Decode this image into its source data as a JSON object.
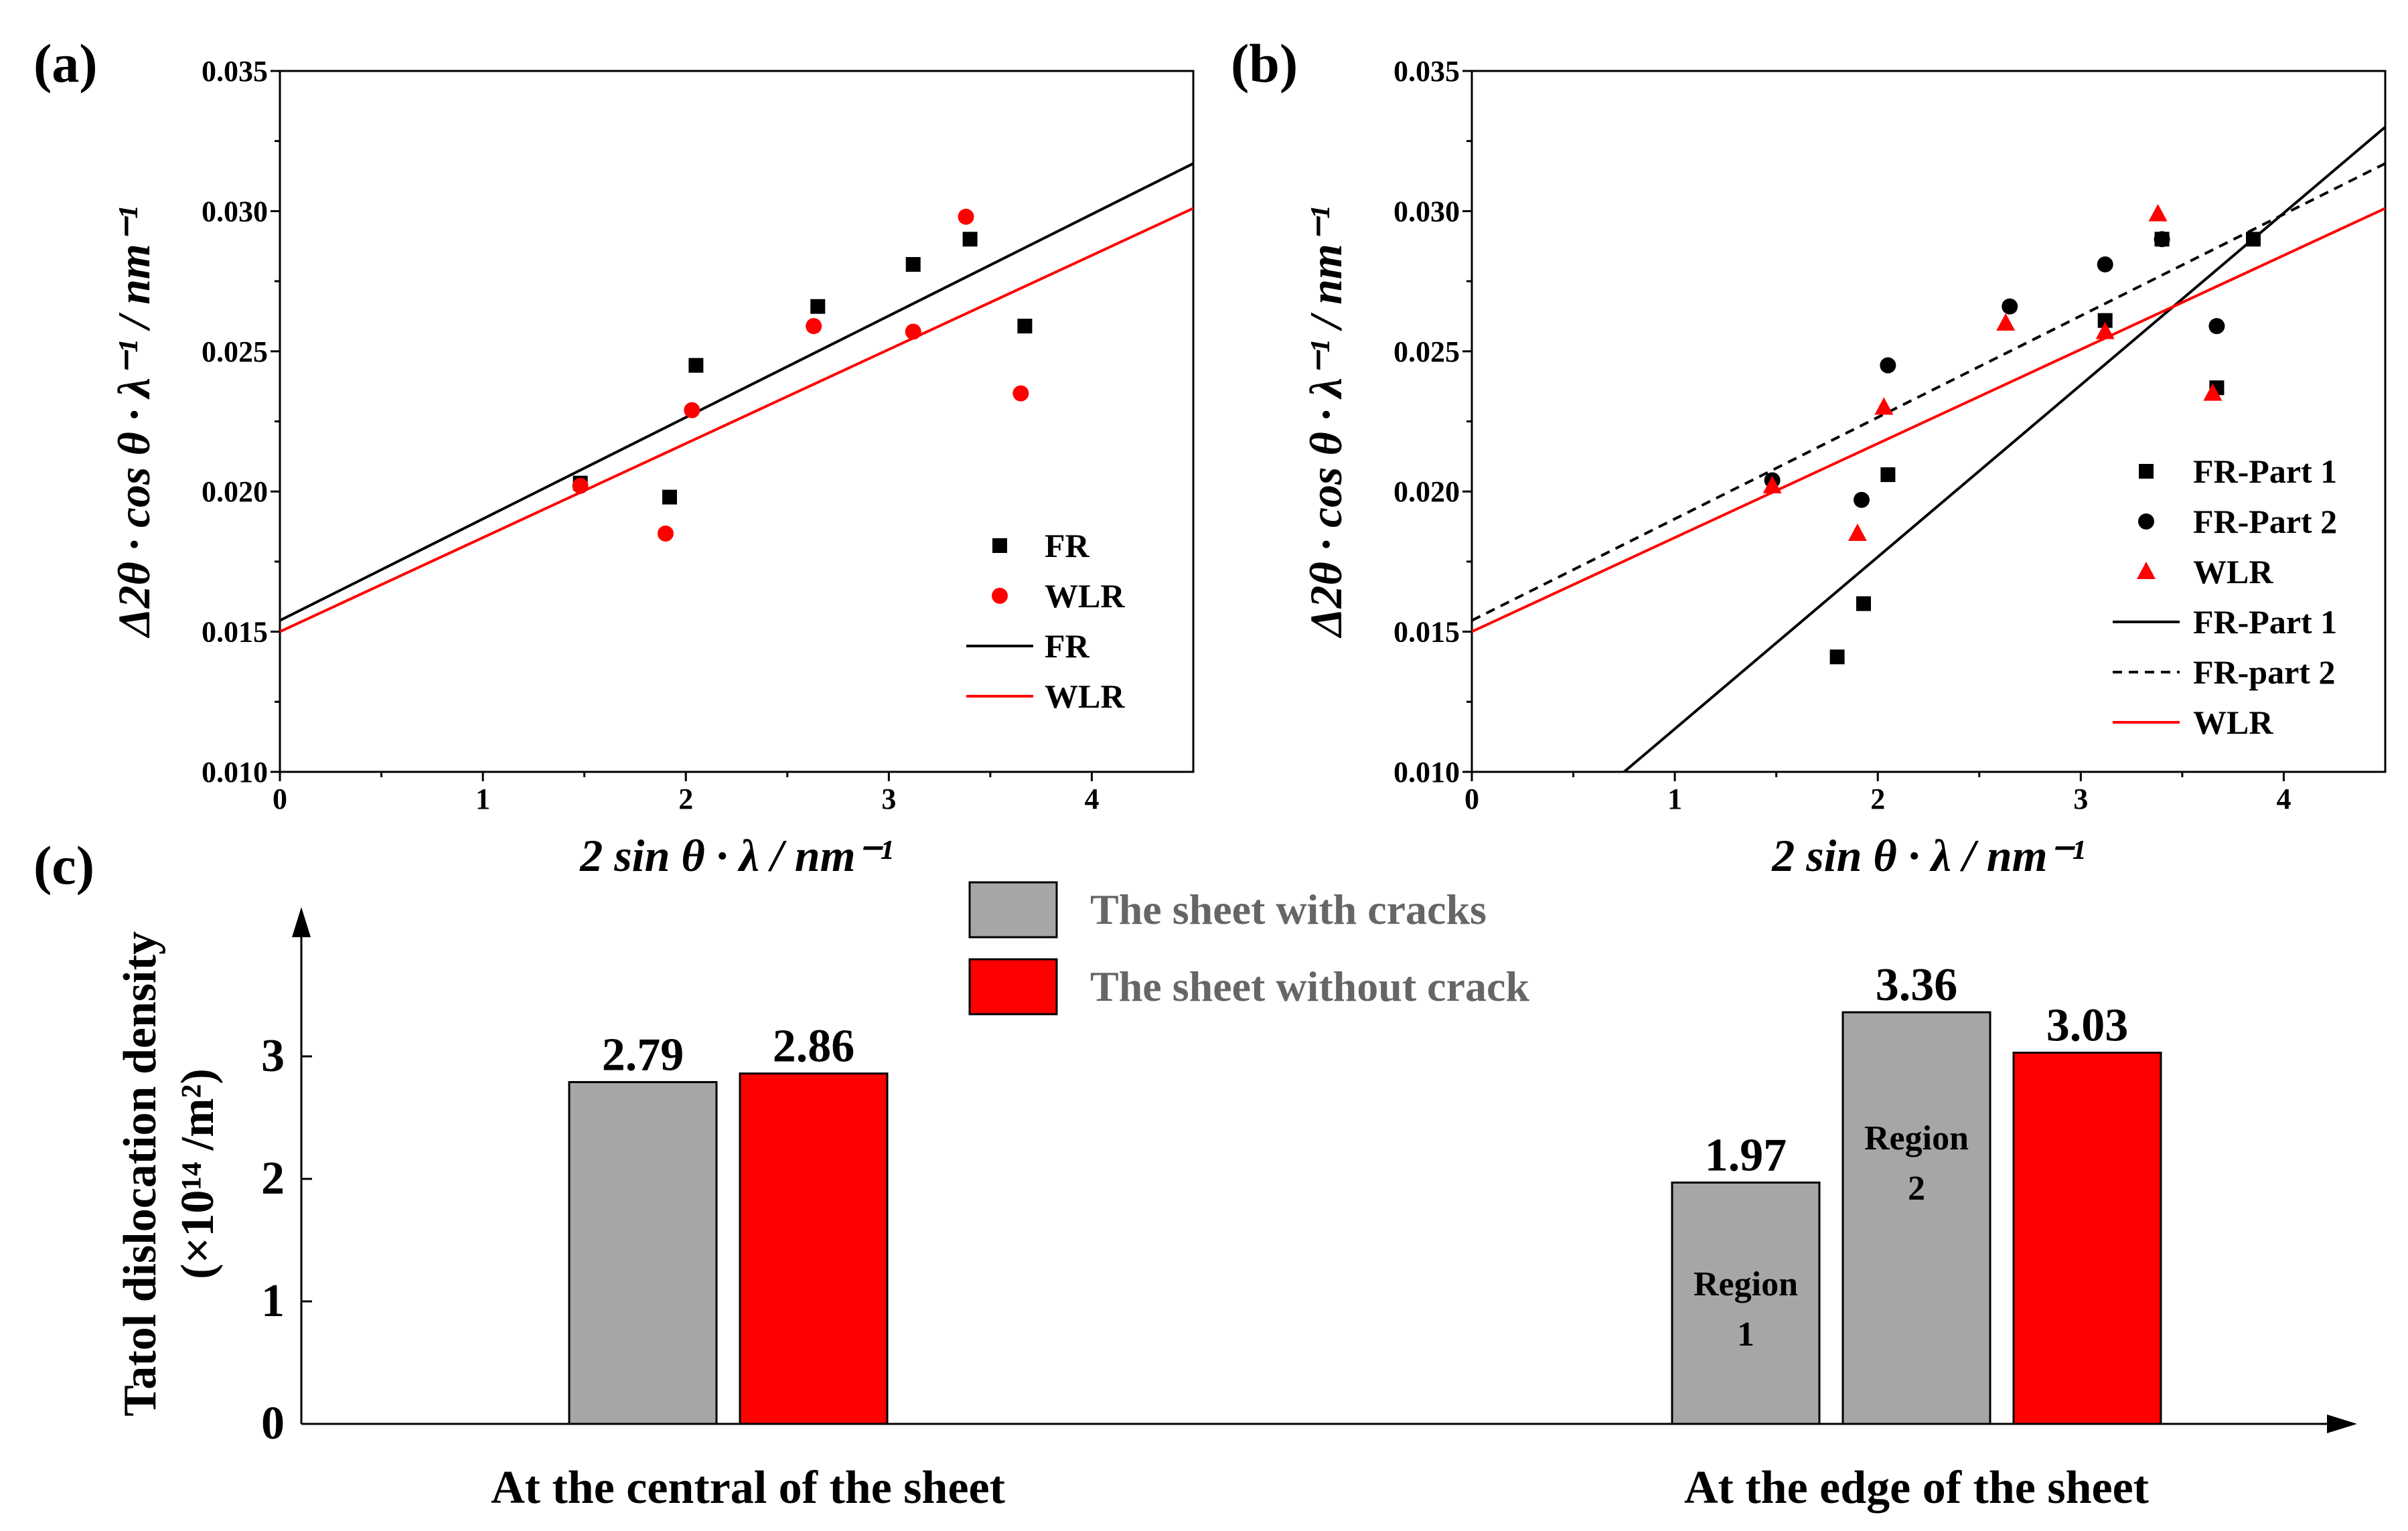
{
  "panels": {
    "a": {
      "label": "(a)"
    },
    "b": {
      "label": "(b)"
    },
    "c": {
      "label": "(c)"
    }
  },
  "chart_data": [
    {
      "id": "a",
      "type": "scatter",
      "xlabel": "2 sin θ · λ / nm⁻¹",
      "ylabel": "Δ2θ · cos θ · λ⁻¹ / nm⁻¹",
      "xlim": [
        0,
        4.5
      ],
      "ylim": [
        0.01,
        0.035
      ],
      "xticks": [
        0,
        1,
        2,
        3,
        4
      ],
      "yticks": [
        0.01,
        0.015,
        0.02,
        0.025,
        0.03,
        0.035
      ],
      "xtick_labels": [
        "0",
        "1",
        "2",
        "3",
        "4"
      ],
      "ytick_labels": [
        "0.010",
        "0.015",
        "0.020",
        "0.025",
        "0.030",
        "0.035"
      ],
      "legend": [
        "FR",
        "WLR",
        "FR",
        "WLR"
      ],
      "series": [
        {
          "name": "FR",
          "marker": "square",
          "color": "#000000",
          "x": [
            1.48,
            1.92,
            2.05,
            2.65,
            3.12,
            3.4,
            3.67
          ],
          "y": [
            0.0203,
            0.0198,
            0.0245,
            0.0266,
            0.0281,
            0.029,
            0.0259
          ]
        },
        {
          "name": "WLR",
          "marker": "circle",
          "color": "#ff0000",
          "x": [
            1.48,
            1.9,
            2.03,
            2.63,
            3.12,
            3.38,
            3.65
          ],
          "y": [
            0.0202,
            0.0185,
            0.0229,
            0.0259,
            0.0257,
            0.0298,
            0.0235
          ]
        }
      ],
      "lines": [
        {
          "name": "FR",
          "color": "#000000",
          "dash": "solid",
          "x": [
            0,
            4.5
          ],
          "y": [
            0.0154,
            0.0317
          ]
        },
        {
          "name": "WLR",
          "color": "#ff0000",
          "dash": "solid",
          "x": [
            0,
            4.5
          ],
          "y": [
            0.015,
            0.0301
          ]
        }
      ]
    },
    {
      "id": "b",
      "type": "scatter",
      "xlabel": "2 sin θ · λ / nm⁻¹",
      "ylabel": "Δ2θ · cos θ · λ⁻¹ / nm⁻¹",
      "xlim": [
        0,
        4.5
      ],
      "ylim": [
        0.01,
        0.035
      ],
      "xticks": [
        0,
        1,
        2,
        3,
        4
      ],
      "yticks": [
        0.01,
        0.015,
        0.02,
        0.025,
        0.03,
        0.035
      ],
      "xtick_labels": [
        "0",
        "1",
        "2",
        "3",
        "4"
      ],
      "ytick_labels": [
        "0.010",
        "0.015",
        "0.020",
        "0.025",
        "0.030",
        "0.035"
      ],
      "legend": [
        "FR-Part 1",
        "FR-Part 2",
        "WLR",
        "FR-Part 1",
        "FR-part 2",
        "WLR"
      ],
      "series": [
        {
          "name": "FR-Part 1",
          "marker": "square",
          "color": "#000000",
          "x": [
            1.8,
            1.93,
            2.05,
            3.12,
            3.4,
            3.67,
            3.85
          ],
          "y": [
            0.0141,
            0.016,
            0.0206,
            0.0261,
            0.029,
            0.0237,
            0.029
          ]
        },
        {
          "name": "FR-Part 2",
          "marker": "circle",
          "color": "#000000",
          "x": [
            1.48,
            1.92,
            2.05,
            2.65,
            3.12,
            3.4,
            3.67
          ],
          "y": [
            0.0204,
            0.0197,
            0.0245,
            0.0266,
            0.0281,
            0.029,
            0.0259
          ]
        },
        {
          "name": "WLR",
          "marker": "triangle",
          "color": "#ff0000",
          "x": [
            1.48,
            1.9,
            2.03,
            2.63,
            3.12,
            3.38,
            3.65
          ],
          "y": [
            0.0202,
            0.0185,
            0.023,
            0.026,
            0.0257,
            0.0299,
            0.0235
          ]
        }
      ],
      "lines": [
        {
          "name": "FR-Part 1",
          "color": "#000000",
          "dash": "solid",
          "x": [
            0.75,
            4.5
          ],
          "y": [
            0.01,
            0.033
          ]
        },
        {
          "name": "FR-part 2",
          "color": "#000000",
          "dash": "dashed",
          "x": [
            0,
            4.5
          ],
          "y": [
            0.0154,
            0.0317
          ]
        },
        {
          "name": "WLR",
          "color": "#ff0000",
          "dash": "solid",
          "x": [
            0,
            4.5
          ],
          "y": [
            0.015,
            0.0301
          ]
        }
      ]
    },
    {
      "id": "c",
      "type": "bar",
      "ylabel_line1": "Tatol dislocation density",
      "ylabel_line2": "(×10¹⁴ /m²)",
      "ylim": [
        0,
        3.9
      ],
      "yticks": [
        0,
        1,
        2,
        3
      ],
      "ytick_labels": [
        "0",
        "1",
        "2",
        "3"
      ],
      "categories": [
        "At the central of the sheet",
        "At the edge of the sheet"
      ],
      "legend": [
        {
          "name": "The sheet with cracks",
          "color": "#a6a6a6"
        },
        {
          "name": "The sheet without crack",
          "color": "#ff0000"
        }
      ],
      "bars": [
        {
          "category": 0,
          "series": "The sheet with cracks",
          "value": 2.79,
          "label": "2.79",
          "color": "#a6a6a6",
          "inner": []
        },
        {
          "category": 0,
          "series": "The sheet without crack",
          "value": 2.86,
          "label": "2.86",
          "color": "#ff0000",
          "inner": []
        },
        {
          "category": 1,
          "series": "The sheet with cracks",
          "value": 1.97,
          "label": "1.97",
          "color": "#a6a6a6",
          "inner": [
            "Region",
            "1"
          ]
        },
        {
          "category": 1,
          "series": "The sheet with cracks",
          "value": 3.36,
          "label": "3.36",
          "color": "#a6a6a6",
          "inner": [
            "Region",
            "2"
          ]
        },
        {
          "category": 1,
          "series": "The sheet without crack",
          "value": 3.03,
          "label": "3.03",
          "color": "#ff0000",
          "inner": []
        }
      ]
    }
  ]
}
